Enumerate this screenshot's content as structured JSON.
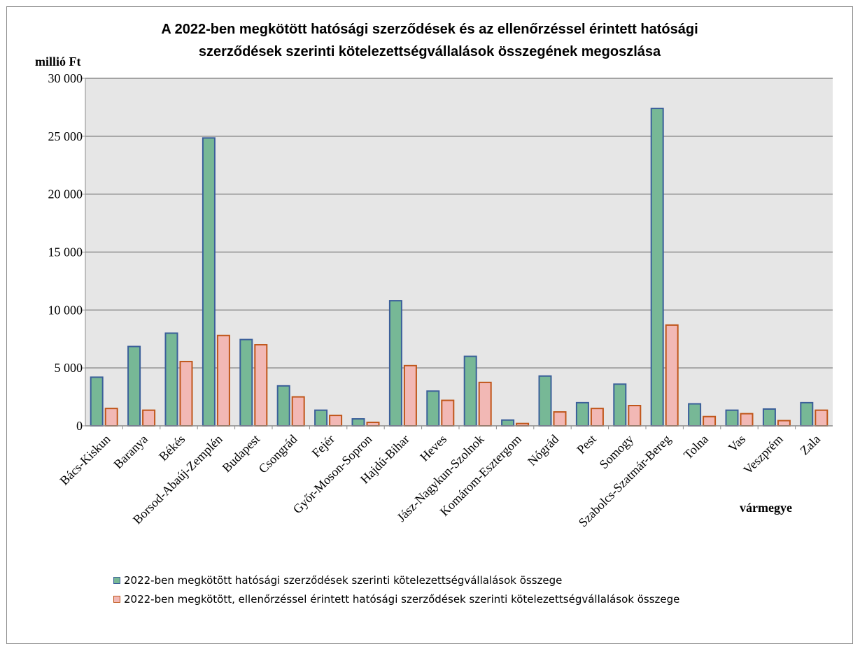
{
  "chart_data": {
    "type": "bar",
    "title_lines": [
      "A 2022-ben megkötött hatósági szerződések és az ellenőrzéssel érintett hatósági",
      "szerződések szerinti kötelezettségvállalások összegének megoszlása"
    ],
    "ylabel": "millió Ft",
    "xlabel": "vármegye",
    "ylim": [
      0,
      30000
    ],
    "yticks": [
      0,
      5000,
      10000,
      15000,
      20000,
      25000,
      30000
    ],
    "ytick_labels": [
      "0",
      "5 000",
      "10 000",
      "15 000",
      "20 000",
      "25 000",
      "30 000"
    ],
    "grid": true,
    "legend_position": "bottom",
    "categories": [
      "Bács-Kiskun",
      "Baranya",
      "Békés",
      "Borsod-Abaúj-Zemplén",
      "Budapest",
      "Csongrád",
      "Fejér",
      "Győr-Moson-Sopron",
      "Hajdú-Bihar",
      "Heves",
      "Jász-Nagykun-Szolnok",
      "Komárom-Esztergom",
      "Nógrád",
      "Pest",
      "Somogy",
      "Szabolcs-Szatmár-Bereg",
      "Tolna",
      "Vas",
      "Veszprém",
      "Zala"
    ],
    "series": [
      {
        "name": "2022-ben megkötött hatósági szerződések szerinti kötelezettségvállalások összege",
        "color": "#77b896",
        "border": "#3b5f9a",
        "values": [
          4200,
          6850,
          8000,
          24850,
          7450,
          3450,
          1350,
          600,
          10800,
          3000,
          6000,
          500,
          4300,
          2000,
          3600,
          27400,
          1900,
          1350,
          1450,
          2000
        ]
      },
      {
        "name": "2022-ben megkötött, ellenőrzéssel érintett hatósági szerződések szerinti kötelezettségvállalások összege",
        "color": "#f2b8b5",
        "border": "#c0561a",
        "values": [
          1500,
          1350,
          5550,
          7800,
          7000,
          2500,
          900,
          300,
          5200,
          2200,
          3750,
          200,
          1200,
          1500,
          1750,
          8700,
          800,
          1050,
          450,
          1350
        ]
      }
    ]
  }
}
